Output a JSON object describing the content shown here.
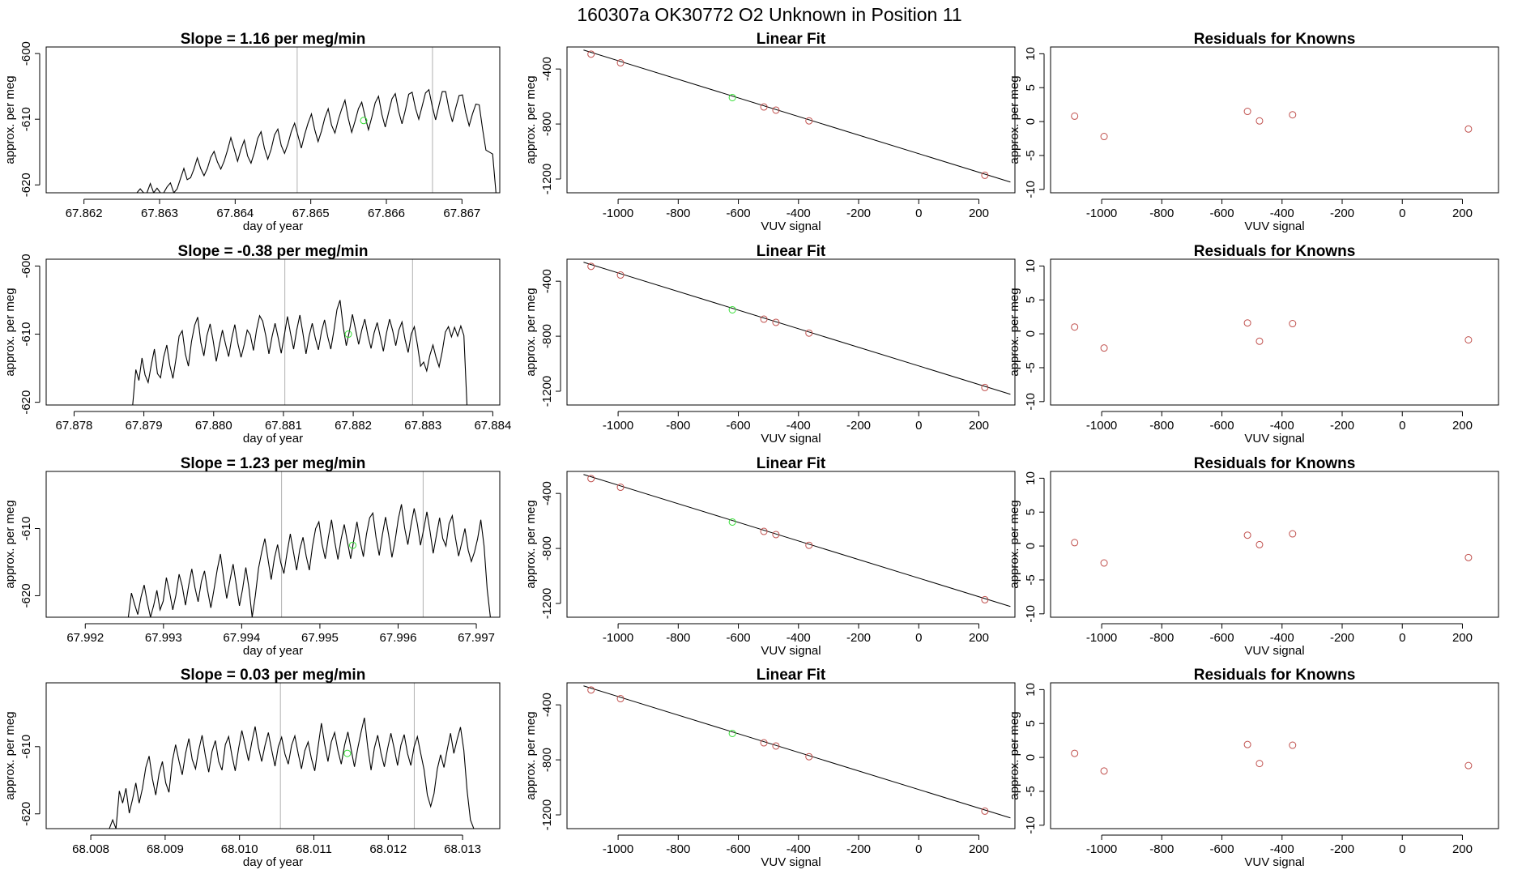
{
  "suptitle": "160307a      OK30772   O2 Unknown in Position  11",
  "colors": {
    "line": "#000000",
    "known_point": "#c0504d",
    "unknown_point": "#33dd33",
    "vline": "#b0b0b0",
    "frame": "#000000"
  },
  "chart_data": [
    {
      "type": "line",
      "title": "Slope =  1.16  per meg/min",
      "xlabel": "day of year",
      "ylabel": "approx. per meg",
      "xlim": [
        67.8615,
        67.8675
      ],
      "ylim": [
        -621.2,
        -599
      ],
      "xticks": [
        "67.862",
        "67.863",
        "67.864",
        "67.865",
        "67.866",
        "67.867"
      ],
      "yticks": [
        "-620",
        "-610",
        "-600"
      ],
      "vlines": [
        67.86482,
        67.86661
      ],
      "unknown_point": {
        "x": 67.8657,
        "y": -610.2
      },
      "series": [
        {
          "x_start": 67.8627,
          "x_end": 67.86745,
          "y": [
            -621.2,
            -620.6,
            -621.2,
            -621.2,
            -619.8,
            -621.2,
            -620.5,
            -621.2,
            -621.2,
            -620.3,
            -619.7,
            -621.2,
            -620.6,
            -619.0,
            -617.5,
            -619.2,
            -618.9,
            -617.6,
            -615.9,
            -617.5,
            -618.6,
            -617.5,
            -615.8,
            -614.9,
            -616.5,
            -617.6,
            -616.4,
            -614.7,
            -612.8,
            -614.6,
            -616.4,
            -614.6,
            -613.2,
            -615.6,
            -616.7,
            -615.1,
            -612.9,
            -611.9,
            -614.4,
            -616.1,
            -614.6,
            -612.4,
            -611.5,
            -614.0,
            -615.2,
            -613.8,
            -611.9,
            -610.6,
            -612.5,
            -614.4,
            -612.3,
            -610.6,
            -609.2,
            -611.6,
            -613.4,
            -611.8,
            -609.8,
            -608.4,
            -610.9,
            -612.1,
            -610.1,
            -608.5,
            -607.1,
            -609.9,
            -612.0,
            -610.3,
            -608.4,
            -607.4,
            -609.6,
            -611.6,
            -609.7,
            -607.5,
            -606.5,
            -609.3,
            -611.2,
            -609.0,
            -606.9,
            -606.1,
            -608.8,
            -610.7,
            -608.6,
            -606.2,
            -605.9,
            -608.3,
            -610.0,
            -608.0,
            -606.0,
            -605.5,
            -608.0,
            -610.1,
            -607.9,
            -605.8,
            -605.8,
            -608.5,
            -610.4,
            -608.3,
            -606.4,
            -606.3,
            -609.0,
            -611.0,
            -609.2,
            -607.7,
            -607.8,
            -611.5,
            -614.7,
            -615.0,
            -615.3,
            -621.2
          ]
        }
      ]
    },
    {
      "type": "scatter",
      "title": "Linear Fit",
      "xlabel": "VUV signal",
      "ylabel": "approx. per meg",
      "xlim": [
        -1170,
        320
      ],
      "ylim": [
        -1300,
        -240
      ],
      "xticks": [
        "-1000",
        "-800",
        "-600",
        "-400",
        "-200",
        "0",
        "200"
      ],
      "yticks": [
        "-1200",
        "-800",
        "-400"
      ],
      "fit_line": [
        {
          "x": -1115,
          "y": -262
        },
        {
          "x": 305,
          "y": -1222
        }
      ],
      "known_points": [
        {
          "x": -1090,
          "y": -292
        },
        {
          "x": -992,
          "y": -355
        },
        {
          "x": -515,
          "y": -676
        },
        {
          "x": -475,
          "y": -699
        },
        {
          "x": -365,
          "y": -777
        },
        {
          "x": 220,
          "y": -1173
        }
      ],
      "unknown_point": {
        "x": -620,
        "y": -608
      }
    },
    {
      "type": "scatter",
      "title": "Residuals for Knowns",
      "xlabel": "VUV signal",
      "ylabel": "approx. per meg",
      "xlim": [
        -1170,
        320
      ],
      "ylim": [
        -10.5,
        11
      ],
      "xticks": [
        "-1000",
        "-800",
        "-600",
        "-400",
        "-200",
        "0",
        "200"
      ],
      "yticks": [
        "-10",
        "-5",
        "0",
        "5",
        "10"
      ],
      "known_points": [
        {
          "x": -1090,
          "y": 0.8
        },
        {
          "x": -992,
          "y": -2.2
        },
        {
          "x": -515,
          "y": 1.5
        },
        {
          "x": -475,
          "y": 0.1
        },
        {
          "x": -365,
          "y": 1.0
        },
        {
          "x": 220,
          "y": -1.1
        }
      ]
    },
    {
      "type": "line",
      "title": "Slope =  -0.38  per meg/min",
      "xlabel": "day of year",
      "ylabel": "approx. per meg",
      "xlim": [
        67.8776,
        67.8841
      ],
      "ylim": [
        -620.4,
        -599
      ],
      "xticks": [
        "67.878",
        "67.879",
        "67.880",
        "67.881",
        "67.882",
        "67.883",
        "67.884"
      ],
      "yticks": [
        "-620",
        "-610",
        "-600"
      ],
      "vlines": [
        67.88102,
        67.88285
      ],
      "unknown_point": {
        "x": 67.88193,
        "y": -610.0
      },
      "series": [
        {
          "x_start": 67.87884,
          "x_end": 67.88363,
          "y": [
            -620.4,
            -615.2,
            -616.8,
            -613.5,
            -616.0,
            -617.1,
            -614.5,
            -612.2,
            -615.8,
            -616.4,
            -613.4,
            -611.6,
            -614.6,
            -616.5,
            -613.6,
            -610.3,
            -609.5,
            -612.9,
            -614.7,
            -611.1,
            -608.7,
            -607.5,
            -611.2,
            -613.2,
            -610.2,
            -608.5,
            -611.0,
            -614.0,
            -611.6,
            -609.4,
            -611.5,
            -613.3,
            -610.6,
            -608.6,
            -611.4,
            -613.4,
            -611.6,
            -609.4,
            -610.1,
            -612.4,
            -609.4,
            -607.3,
            -608.1,
            -610.2,
            -612.9,
            -610.4,
            -608.4,
            -610.5,
            -612.8,
            -610.1,
            -607.4,
            -609.9,
            -612.2,
            -609.4,
            -607.2,
            -609.9,
            -612.9,
            -610.3,
            -608.4,
            -610.6,
            -612.3,
            -609.6,
            -607.9,
            -610.4,
            -612.2,
            -609.5,
            -606.4,
            -605.0,
            -608.9,
            -611.7,
            -609.6,
            -607.1,
            -609.3,
            -611.5,
            -609.4,
            -607.8,
            -610.2,
            -612.1,
            -609.8,
            -608.3,
            -610.4,
            -612.5,
            -609.8,
            -607.8,
            -609.5,
            -611.7,
            -609.4,
            -608.2,
            -610.8,
            -612.7,
            -610.0,
            -608.9,
            -611.6,
            -614.7,
            -614.1,
            -615.4,
            -613.1,
            -611.6,
            -613.4,
            -614.8,
            -612.6,
            -609.7,
            -608.9,
            -610.4,
            -609.0,
            -610.3,
            -608.8,
            -610.2,
            -620.4
          ]
        }
      ]
    },
    {
      "type": "scatter",
      "title": "Linear Fit",
      "xlabel": "VUV signal",
      "ylabel": "approx. per meg",
      "xlim": [
        -1170,
        320
      ],
      "ylim": [
        -1300,
        -240
      ],
      "xticks": [
        "-1000",
        "-800",
        "-600",
        "-400",
        "-200",
        "0",
        "200"
      ],
      "yticks": [
        "-1200",
        "-800",
        "-400"
      ],
      "fit_line": [
        {
          "x": -1115,
          "y": -262
        },
        {
          "x": 305,
          "y": -1222
        }
      ],
      "known_points": [
        {
          "x": -1090,
          "y": -292
        },
        {
          "x": -992,
          "y": -355
        },
        {
          "x": -515,
          "y": -676
        },
        {
          "x": -475,
          "y": -699
        },
        {
          "x": -365,
          "y": -777
        },
        {
          "x": 220,
          "y": -1173
        }
      ],
      "unknown_point": {
        "x": -620,
        "y": -608
      }
    },
    {
      "type": "scatter",
      "title": "Residuals for Knowns",
      "xlabel": "VUV signal",
      "ylabel": "approx. per meg",
      "xlim": [
        -1170,
        320
      ],
      "ylim": [
        -10.5,
        11
      ],
      "xticks": [
        "-1000",
        "-800",
        "-600",
        "-400",
        "-200",
        "0",
        "200"
      ],
      "yticks": [
        "-10",
        "-5",
        "0",
        "5",
        "10"
      ],
      "known_points": [
        {
          "x": -1090,
          "y": 1.0
        },
        {
          "x": -992,
          "y": -2.1
        },
        {
          "x": -515,
          "y": 1.6
        },
        {
          "x": -475,
          "y": -1.1
        },
        {
          "x": -365,
          "y": 1.5
        },
        {
          "x": 220,
          "y": -0.9
        }
      ]
    },
    {
      "type": "line",
      "title": "Slope =  1.23  per meg/min",
      "xlabel": "day of year",
      "ylabel": "approx. per meg",
      "xlim": [
        67.9915,
        67.9973
      ],
      "ylim": [
        -623.2,
        -601.5
      ],
      "xticks": [
        "67.992",
        "67.993",
        "67.994",
        "67.995",
        "67.996",
        "67.997"
      ],
      "yticks": [
        "-620",
        "-610"
      ],
      "vlines": [
        67.99451,
        67.99632
      ],
      "unknown_point": {
        "x": 67.99542,
        "y": -612.5
      },
      "series": [
        {
          "x_start": 67.99255,
          "x_end": 67.99718,
          "y": [
            -623.2,
            -619.6,
            -621.3,
            -622.8,
            -620.2,
            -618.4,
            -621.0,
            -623.2,
            -621.4,
            -619.2,
            -622.1,
            -620.8,
            -617.3,
            -619.5,
            -622.1,
            -619.9,
            -616.8,
            -618.6,
            -621.4,
            -618.5,
            -616.0,
            -618.8,
            -620.9,
            -617.9,
            -616.3,
            -619.3,
            -621.8,
            -619.0,
            -616.1,
            -613.8,
            -617.3,
            -620.4,
            -617.7,
            -615.3,
            -618.4,
            -621.5,
            -619.0,
            -615.8,
            -618.9,
            -623.2,
            -620.0,
            -615.9,
            -613.5,
            -611.5,
            -614.6,
            -617.6,
            -614.4,
            -612.4,
            -615.1,
            -616.7,
            -613.6,
            -610.8,
            -613.5,
            -616.2,
            -613.1,
            -611.3,
            -614.1,
            -616.2,
            -612.6,
            -610.0,
            -609.0,
            -612.3,
            -614.5,
            -611.3,
            -608.7,
            -612.0,
            -614.6,
            -611.6,
            -609.4,
            -612.0,
            -614.5,
            -611.7,
            -609.0,
            -611.9,
            -614.2,
            -610.8,
            -608.4,
            -607.7,
            -611.3,
            -614.0,
            -610.9,
            -608.3,
            -611.0,
            -614.3,
            -611.8,
            -608.6,
            -606.4,
            -609.9,
            -612.4,
            -609.5,
            -607.0,
            -609.3,
            -612.5,
            -610.1,
            -607.5,
            -610.4,
            -613.7,
            -611.0,
            -608.4,
            -611.5,
            -612.6,
            -609.3,
            -608.1,
            -611.4,
            -614.1,
            -612.1,
            -610.0,
            -613.2,
            -614.9,
            -613.5,
            -611.5,
            -608.7,
            -612.6,
            -619.1,
            -623.2
          ]
        }
      ]
    },
    {
      "type": "scatter",
      "title": "Linear Fit",
      "xlabel": "VUV signal",
      "ylabel": "approx. per meg",
      "xlim": [
        -1170,
        320
      ],
      "ylim": [
        -1300,
        -240
      ],
      "xticks": [
        "-1000",
        "-800",
        "-600",
        "-400",
        "-200",
        "0",
        "200"
      ],
      "yticks": [
        "-1200",
        "-800",
        "-400"
      ],
      "fit_line": [
        {
          "x": -1115,
          "y": -262
        },
        {
          "x": 305,
          "y": -1222
        }
      ],
      "known_points": [
        {
          "x": -1090,
          "y": -292
        },
        {
          "x": -992,
          "y": -355
        },
        {
          "x": -515,
          "y": -676
        },
        {
          "x": -475,
          "y": -699
        },
        {
          "x": -365,
          "y": -777
        },
        {
          "x": 220,
          "y": -1173
        }
      ],
      "unknown_point": {
        "x": -620,
        "y": -608
      }
    },
    {
      "type": "scatter",
      "title": "Residuals for Knowns",
      "xlabel": "VUV signal",
      "ylabel": "approx. per meg",
      "xlim": [
        -1170,
        320
      ],
      "ylim": [
        -10.5,
        11
      ],
      "xticks": [
        "-1000",
        "-800",
        "-600",
        "-400",
        "-200",
        "0",
        "200"
      ],
      "yticks": [
        "-10",
        "-5",
        "0",
        "5",
        "10"
      ],
      "known_points": [
        {
          "x": -1090,
          "y": 0.5
        },
        {
          "x": -992,
          "y": -2.5
        },
        {
          "x": -515,
          "y": 1.6
        },
        {
          "x": -475,
          "y": 0.2
        },
        {
          "x": -365,
          "y": 1.8
        },
        {
          "x": 220,
          "y": -1.7
        }
      ]
    },
    {
      "type": "line",
      "title": "Slope =  0.03  per meg/min",
      "xlabel": "day of year",
      "ylabel": "approx. per meg",
      "xlim": [
        68.0074,
        68.0135
      ],
      "ylim": [
        -622.2,
        -600.5
      ],
      "xticks": [
        "68.008",
        "68.009",
        "68.010",
        "68.011",
        "68.012",
        "68.013"
      ],
      "yticks": [
        "-620",
        "-610"
      ],
      "vlines": [
        68.01055,
        68.01235
      ],
      "unknown_point": {
        "x": 68.01145,
        "y": -611.0
      },
      "series": [
        {
          "x_start": 68.00825,
          "x_end": 68.01315,
          "y": [
            -622.2,
            -620.9,
            -622.2,
            -616.6,
            -618.4,
            -616.2,
            -619.9,
            -617.8,
            -615.4,
            -618.4,
            -616.2,
            -613.1,
            -611.4,
            -614.8,
            -617.2,
            -614.0,
            -612.2,
            -615.4,
            -616.8,
            -612.2,
            -609.7,
            -612.1,
            -614.2,
            -611.0,
            -608.8,
            -611.9,
            -613.3,
            -610.5,
            -608.3,
            -611.4,
            -613.8,
            -610.7,
            -609.1,
            -612.2,
            -613.5,
            -609.7,
            -608.5,
            -611.3,
            -613.6,
            -610.3,
            -607.6,
            -609.8,
            -612.1,
            -609.3,
            -607.0,
            -610.1,
            -612.2,
            -609.8,
            -607.9,
            -610.5,
            -612.9,
            -610.0,
            -608.6,
            -611.1,
            -612.6,
            -609.8,
            -608.4,
            -611.0,
            -613.3,
            -610.6,
            -609.3,
            -611.8,
            -613.6,
            -610.0,
            -606.5,
            -609.6,
            -612.2,
            -609.3,
            -607.9,
            -610.6,
            -612.6,
            -609.8,
            -607.8,
            -610.5,
            -613.0,
            -610.2,
            -607.8,
            -605.7,
            -610.1,
            -613.5,
            -610.2,
            -608.3,
            -611.0,
            -613.0,
            -610.3,
            -608.0,
            -610.3,
            -612.8,
            -609.8,
            -608.2,
            -611.0,
            -612.8,
            -610.0,
            -608.5,
            -611.0,
            -613.4,
            -617.2,
            -618.9,
            -617.0,
            -613.3,
            -611.2,
            -613.1,
            -610.4,
            -608.0,
            -611.0,
            -608.9,
            -607.1,
            -610.5,
            -616.6,
            -620.9,
            -622.2
          ]
        }
      ]
    },
    {
      "type": "scatter",
      "title": "Linear Fit",
      "xlabel": "VUV signal",
      "ylabel": "approx. per meg",
      "xlim": [
        -1170,
        320
      ],
      "ylim": [
        -1300,
        -240
      ],
      "xticks": [
        "-1000",
        "-800",
        "-600",
        "-400",
        "-200",
        "0",
        "200"
      ],
      "yticks": [
        "-1200",
        "-800",
        "-400"
      ],
      "fit_line": [
        {
          "x": -1115,
          "y": -262
        },
        {
          "x": 305,
          "y": -1222
        }
      ],
      "known_points": [
        {
          "x": -1090,
          "y": -292
        },
        {
          "x": -992,
          "y": -355
        },
        {
          "x": -515,
          "y": -676
        },
        {
          "x": -475,
          "y": -699
        },
        {
          "x": -365,
          "y": -777
        },
        {
          "x": 220,
          "y": -1173
        }
      ],
      "unknown_point": {
        "x": -620,
        "y": -608
      }
    },
    {
      "type": "scatter",
      "title": "Residuals for Knowns",
      "xlabel": "VUV signal",
      "ylabel": "approx. per meg",
      "xlim": [
        -1170,
        320
      ],
      "ylim": [
        -10.5,
        11
      ],
      "xticks": [
        "-1000",
        "-800",
        "-600",
        "-400",
        "-200",
        "0",
        "200"
      ],
      "yticks": [
        "-10",
        "-5",
        "0",
        "5",
        "10"
      ],
      "known_points": [
        {
          "x": -1090,
          "y": 0.6
        },
        {
          "x": -992,
          "y": -2.0
        },
        {
          "x": -515,
          "y": 1.9
        },
        {
          "x": -475,
          "y": -0.9
        },
        {
          "x": -365,
          "y": 1.8
        },
        {
          "x": 220,
          "y": -1.2
        }
      ]
    }
  ]
}
